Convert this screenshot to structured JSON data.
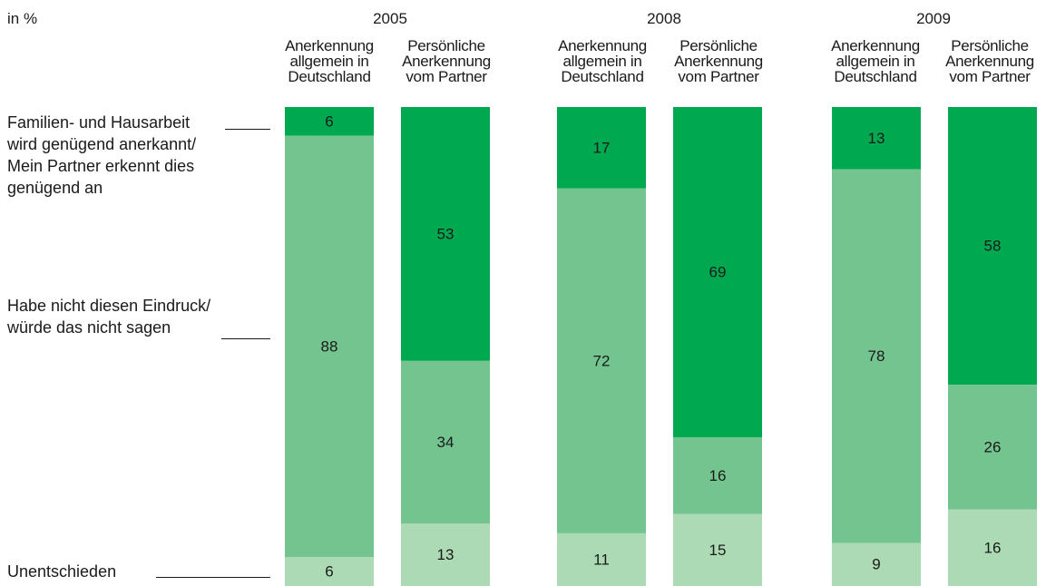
{
  "unit_label": "in %",
  "chart_data": {
    "type": "bar",
    "stacked": true,
    "colors": {
      "dark": "#00a84f",
      "medium": "#74c490",
      "light": "#acdab5"
    },
    "years": [
      "2005",
      "2008",
      "2009"
    ],
    "column_headers": {
      "left": [
        "Anerkennung",
        "allgemein in",
        "Deutschland"
      ],
      "right": [
        "Persönliche",
        "Anerkennung",
        "vom Partner"
      ]
    },
    "series": [
      {
        "name_lines": [
          "Familien- und Hausarbeit",
          "wird genügend anerkannt/",
          "Mein Partner erkennt dies",
          "genügend an"
        ],
        "color": "dark"
      },
      {
        "name_lines": [
          "Habe nicht diesen Eindruck/",
          "würde das nicht sagen"
        ],
        "color": "medium"
      },
      {
        "name_lines": [
          "Unentschieden"
        ],
        "color": "light"
      }
    ],
    "bars": [
      {
        "year": "2005",
        "column": "left",
        "values": [
          6,
          88,
          6
        ]
      },
      {
        "year": "2005",
        "column": "right",
        "values": [
          53,
          34,
          13
        ]
      },
      {
        "year": "2008",
        "column": "left",
        "values": [
          17,
          72,
          11
        ]
      },
      {
        "year": "2008",
        "column": "right",
        "values": [
          69,
          16,
          15
        ]
      },
      {
        "year": "2009",
        "column": "left",
        "values": [
          13,
          78,
          9
        ]
      },
      {
        "year": "2009",
        "column": "right",
        "values": [
          58,
          26,
          16
        ]
      }
    ]
  }
}
